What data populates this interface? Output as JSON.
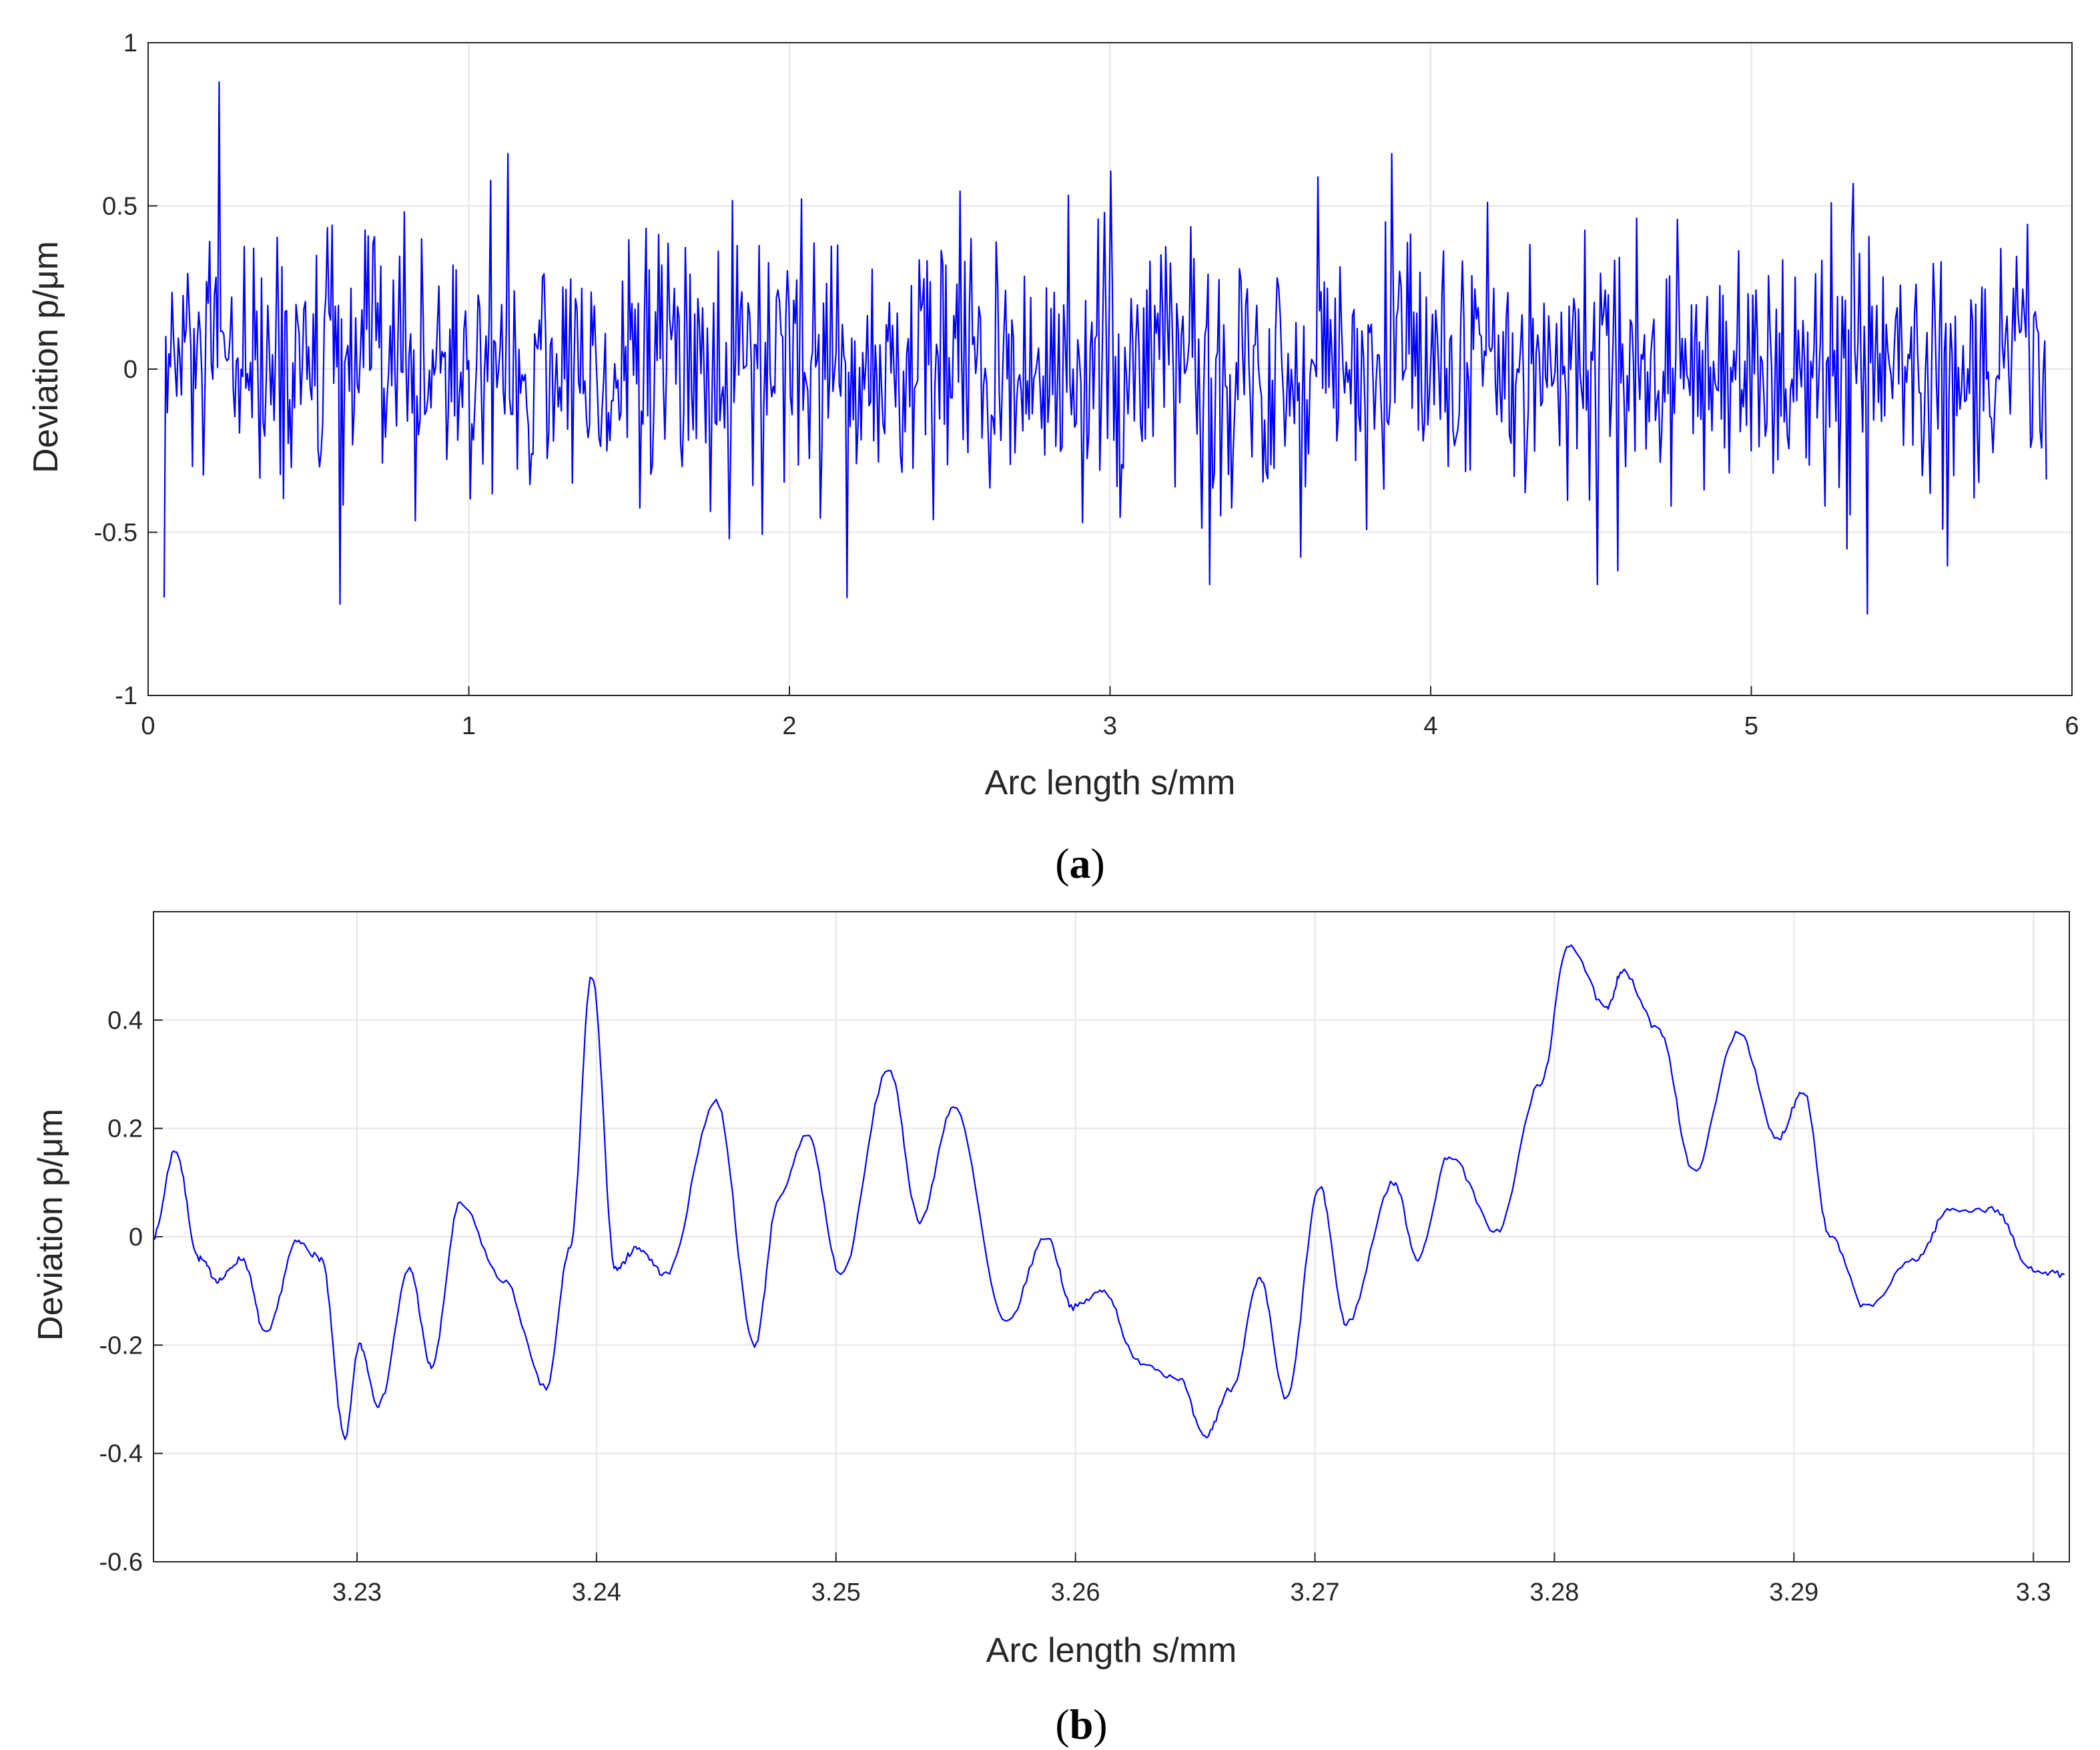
{
  "chart_data": [
    {
      "type": "line",
      "panel_label": {
        "open": "(",
        "letter": "a",
        "close": ")"
      },
      "xlabel": "Arc length s/mm",
      "ylabel": "Deviation p/μm",
      "xlim": [
        0,
        6
      ],
      "ylim": [
        -1,
        1
      ],
      "xticks": [
        0,
        1,
        2,
        3,
        4,
        5,
        6
      ],
      "xtick_labels": [
        "0",
        "1",
        "2",
        "3",
        "4",
        "5",
        "6"
      ],
      "yticks": [
        -1,
        -0.5,
        0,
        0.5,
        1
      ],
      "ytick_labels": [
        "-1",
        "-0.5",
        "0",
        "0.5",
        "1"
      ],
      "grid": true,
      "series": [
        {
          "name": "Deviation",
          "color": "#0000ff",
          "x_range": [
            0.05,
            5.92
          ],
          "n_points": 1200,
          "description": "dense measured profile noise, roughly zero-mean",
          "mean": 0.0,
          "std": 0.2,
          "peaks": [
            {
              "x": 0.05,
              "y": -0.7
            },
            {
              "x": 0.22,
              "y": 0.88
            },
            {
              "x": 0.6,
              "y": -0.72
            },
            {
              "x": 1.12,
              "y": 0.66
            },
            {
              "x": 2.18,
              "y": -0.7
            },
            {
              "x": 3.31,
              "y": -0.66
            },
            {
              "x": 3.88,
              "y": 0.66
            },
            {
              "x": 4.52,
              "y": -0.66
            },
            {
              "x": 5.36,
              "y": -0.75
            }
          ]
        }
      ]
    },
    {
      "type": "line",
      "panel_label": {
        "open": "(",
        "letter": "b",
        "close": ")"
      },
      "xlabel": "Arc length s/mm",
      "ylabel": "Deviation p/μm",
      "xlim": [
        3.2215,
        3.3015
      ],
      "ylim": [
        -0.6,
        0.6
      ],
      "xticks": [
        3.23,
        3.24,
        3.25,
        3.26,
        3.27,
        3.28,
        3.29,
        3.3
      ],
      "xtick_labels": [
        "3.23",
        "3.24",
        "3.25",
        "3.26",
        "3.27",
        "3.28",
        "3.29",
        "3.3"
      ],
      "yticks": [
        -0.6,
        -0.4,
        -0.2,
        0,
        0.2,
        0.4
      ],
      "ytick_labels": [
        "-0.6",
        "-0.4",
        "-0.2",
        "0",
        "0.2",
        "0.4"
      ],
      "grid": true,
      "series": [
        {
          "name": "Deviation",
          "color": "#0000ff",
          "x": [
            3.2215,
            3.2224,
            3.2234,
            3.2242,
            3.2252,
            3.2262,
            3.2275,
            3.2285,
            3.2295,
            3.2301,
            3.2309,
            3.2322,
            3.2331,
            3.2343,
            3.2361,
            3.2379,
            3.2389,
            3.2398,
            3.2408,
            3.2417,
            3.2429,
            3.245,
            3.2466,
            3.2476,
            3.2488,
            3.2502,
            3.2522,
            3.2535,
            3.2549,
            3.2571,
            3.2588,
            3.2599,
            3.2612,
            3.2626,
            3.2643,
            3.2654,
            3.2665,
            3.2677,
            3.2688,
            3.2702,
            3.2713,
            3.2733,
            3.2743,
            3.2756,
            3.2776,
            3.2794,
            3.2806,
            3.2822,
            3.2828,
            3.2844,
            3.2858,
            3.2877,
            3.2893,
            3.2904,
            3.2915,
            3.293,
            3.2951,
            3.2965,
            3.2984,
            3.2999,
            3.3013
          ],
          "y": [
            0.0,
            0.16,
            -0.04,
            -0.08,
            -0.04,
            -0.18,
            -0.01,
            -0.04,
            -0.37,
            -0.2,
            -0.31,
            -0.06,
            -0.24,
            0.06,
            -0.08,
            -0.28,
            -0.02,
            0.48,
            -0.06,
            -0.02,
            -0.07,
            0.25,
            -0.2,
            0.07,
            0.19,
            -0.07,
            0.31,
            0.03,
            0.24,
            -0.16,
            0.0,
            -0.13,
            -0.1,
            -0.23,
            -0.26,
            -0.37,
            -0.28,
            -0.08,
            -0.3,
            0.09,
            -0.16,
            0.1,
            -0.04,
            0.15,
            0.01,
            0.28,
            0.54,
            0.42,
            0.49,
            0.38,
            0.12,
            0.38,
            0.18,
            0.27,
            0.0,
            -0.13,
            -0.04,
            0.05,
            0.05,
            -0.06,
            -0.07
          ]
        }
      ]
    }
  ]
}
